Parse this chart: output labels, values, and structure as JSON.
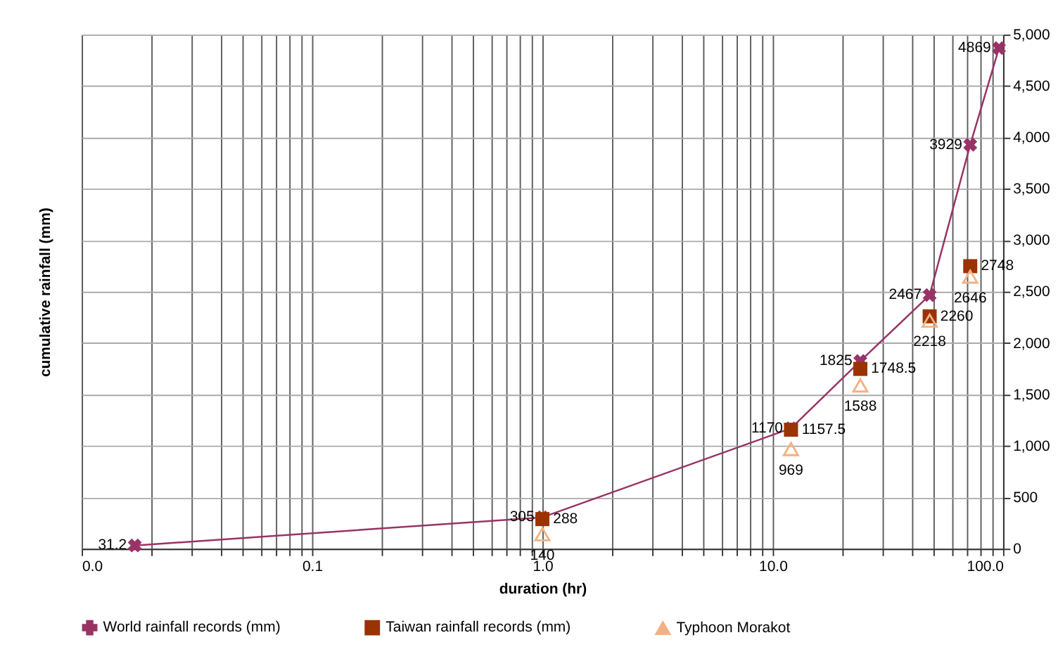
{
  "chart_data": {
    "type": "scatter",
    "xlabel": "duration (hr)",
    "ylabel": "cumulative rainfall (mm)",
    "log": "x",
    "grid": true,
    "legend": "bottom",
    "data_labels": true,
    "xlim": [
      0.01,
      100
    ],
    "ylim": [
      0,
      5000
    ],
    "xticks": [
      {
        "value": 0.01,
        "label": "0.0"
      },
      {
        "value": 0.02,
        "label": null
      },
      {
        "value": 0.03,
        "label": null
      },
      {
        "value": 0.04,
        "label": null
      },
      {
        "value": 0.05,
        "label": null
      },
      {
        "value": 0.06,
        "label": null
      },
      {
        "value": 0.07,
        "label": null
      },
      {
        "value": 0.08,
        "label": null
      },
      {
        "value": 0.09,
        "label": null
      },
      {
        "value": 0.1,
        "label": "0.1"
      },
      {
        "value": 0.2,
        "label": null
      },
      {
        "value": 0.3,
        "label": null
      },
      {
        "value": 0.4,
        "label": null
      },
      {
        "value": 0.5,
        "label": null
      },
      {
        "value": 0.6,
        "label": null
      },
      {
        "value": 0.7,
        "label": null
      },
      {
        "value": 0.8,
        "label": null
      },
      {
        "value": 0.9,
        "label": null
      },
      {
        "value": 1,
        "label": "1.0"
      },
      {
        "value": 2,
        "label": null
      },
      {
        "value": 3,
        "label": null
      },
      {
        "value": 4,
        "label": null
      },
      {
        "value": 5,
        "label": null
      },
      {
        "value": 6,
        "label": null
      },
      {
        "value": 7,
        "label": null
      },
      {
        "value": 8,
        "label": null
      },
      {
        "value": 9,
        "label": null
      },
      {
        "value": 10,
        "label": "10.0"
      },
      {
        "value": 20,
        "label": null
      },
      {
        "value": 30,
        "label": null
      },
      {
        "value": 40,
        "label": null
      },
      {
        "value": 50,
        "label": null
      },
      {
        "value": 60,
        "label": null
      },
      {
        "value": 70,
        "label": null
      },
      {
        "value": 80,
        "label": null
      },
      {
        "value": 90,
        "label": null
      },
      {
        "value": 100,
        "label": "100.0"
      }
    ],
    "yticks": [
      0,
      500,
      {
        "value": 1000,
        "label": "1,000"
      },
      {
        "value": 1500,
        "label": "1,500"
      },
      {
        "value": 2000,
        "label": "2,000"
      },
      {
        "value": 2500,
        "label": "2,500"
      },
      {
        "value": 3000,
        "label": "3,000"
      },
      {
        "value": 3500,
        "label": "3,500"
      },
      {
        "value": 4000,
        "label": "4,000"
      },
      {
        "value": 4500,
        "label": "4,500"
      },
      {
        "value": 5000,
        "label": "5,000"
      }
    ],
    "series": [
      {
        "name": "World rainfall records (mm)",
        "type": "line",
        "marker": "cross",
        "line_style": "solid",
        "color": "#993366",
        "x": [
          0.017,
          1,
          12,
          24,
          48,
          72,
          96
        ],
        "values": [
          31.2,
          305,
          1170,
          1825,
          2467,
          3929,
          4869
        ]
      },
      {
        "name": "Taiwan rainfall records (mm)",
        "marker": "square",
        "color": "#993300",
        "x": [
          1,
          12,
          24,
          48,
          72
        ],
        "values": [
          288,
          1157.5,
          1748.5,
          2260,
          2748
        ]
      },
      {
        "name": "Typhoon Morakot",
        "marker": "triangle",
        "color": "#f4b183",
        "x": [
          1,
          12,
          24,
          48,
          72
        ],
        "values": [
          140,
          969,
          1588,
          2218,
          2646
        ]
      }
    ]
  }
}
